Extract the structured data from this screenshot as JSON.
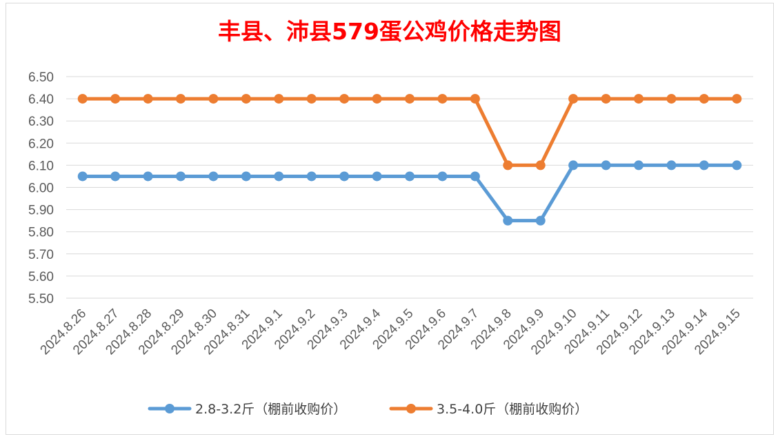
{
  "chart_data": {
    "type": "line",
    "title": "丰县、沛县579蛋公鸡价格走势图",
    "xlabel": "",
    "ylabel": "",
    "ylim": [
      5.5,
      6.5
    ],
    "ytick_step": 0.1,
    "yticks": [
      "5.50",
      "5.60",
      "5.70",
      "5.80",
      "5.90",
      "6.00",
      "6.10",
      "6.20",
      "6.30",
      "6.40",
      "6.50"
    ],
    "grid": true,
    "legend_position": "bottom",
    "categories": [
      "2024.8.26",
      "2024.8.27",
      "2024.8.28",
      "2024.8.29",
      "2024.8.30",
      "2024.8.31",
      "2024.9.1",
      "2024.9.2",
      "2024.9.3",
      "2024.9.4",
      "2024.9.5",
      "2024.9.6",
      "2024.9.7",
      "2024.9.8",
      "2024.9.9",
      "2024.9.10",
      "2024.9.11",
      "2024.9.12",
      "2024.9.13",
      "2024.9.14",
      "2024.9.15"
    ],
    "series": [
      {
        "name": "2.8-3.2斤（棚前收购价）",
        "color": "#5b9bd5",
        "values": [
          6.05,
          6.05,
          6.05,
          6.05,
          6.05,
          6.05,
          6.05,
          6.05,
          6.05,
          6.05,
          6.05,
          6.05,
          6.05,
          5.85,
          5.85,
          6.1,
          6.1,
          6.1,
          6.1,
          6.1,
          6.1
        ]
      },
      {
        "name": "3.5-4.0斤（棚前收购价）",
        "color": "#ed7d31",
        "values": [
          6.4,
          6.4,
          6.4,
          6.4,
          6.4,
          6.4,
          6.4,
          6.4,
          6.4,
          6.4,
          6.4,
          6.4,
          6.4,
          6.1,
          6.1,
          6.4,
          6.4,
          6.4,
          6.4,
          6.4,
          6.4
        ]
      }
    ]
  }
}
